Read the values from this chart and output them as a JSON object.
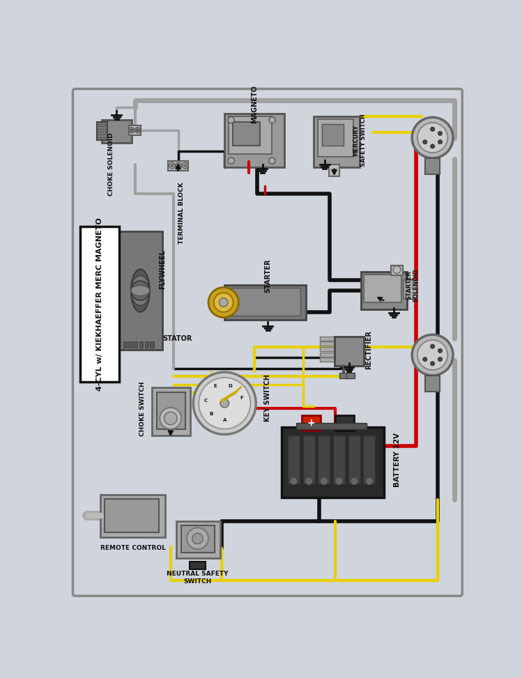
{
  "bg_color": "#d0d4dc",
  "wire_black": "#111111",
  "wire_red": "#cc0000",
  "wire_yellow": "#e8d000",
  "wire_gray": "#a0a0a0",
  "comp_gray": "#909090",
  "comp_light": "#b8b8b8",
  "comp_dark": "#606060",
  "title": "4-CYL w/ KIEKHAEFFER MERC MAGNETO",
  "labels": {
    "choke_solenoid": "CHOKE SOLENOID",
    "terminal_block": "TERMINAL BLOCK",
    "magneto": "MAGNETO",
    "mercury_safety": "MERCURY\nSAFETY SWITCH",
    "flywheel": "FLYWHEEL",
    "stator": "STATOR",
    "starter": "STARTER",
    "starter_solenoid": "STARTER\nSOLENOID",
    "rectifier": "RECTIFIER",
    "key_switch": "KEY SWITCH",
    "choke_switch": "CHOKE SWITCH",
    "battery": "BATTERY 12V",
    "remote_control": "REMOTE CONTROL",
    "neutral_safety": "NEUTRAL SAFETY\nSWITCH"
  }
}
